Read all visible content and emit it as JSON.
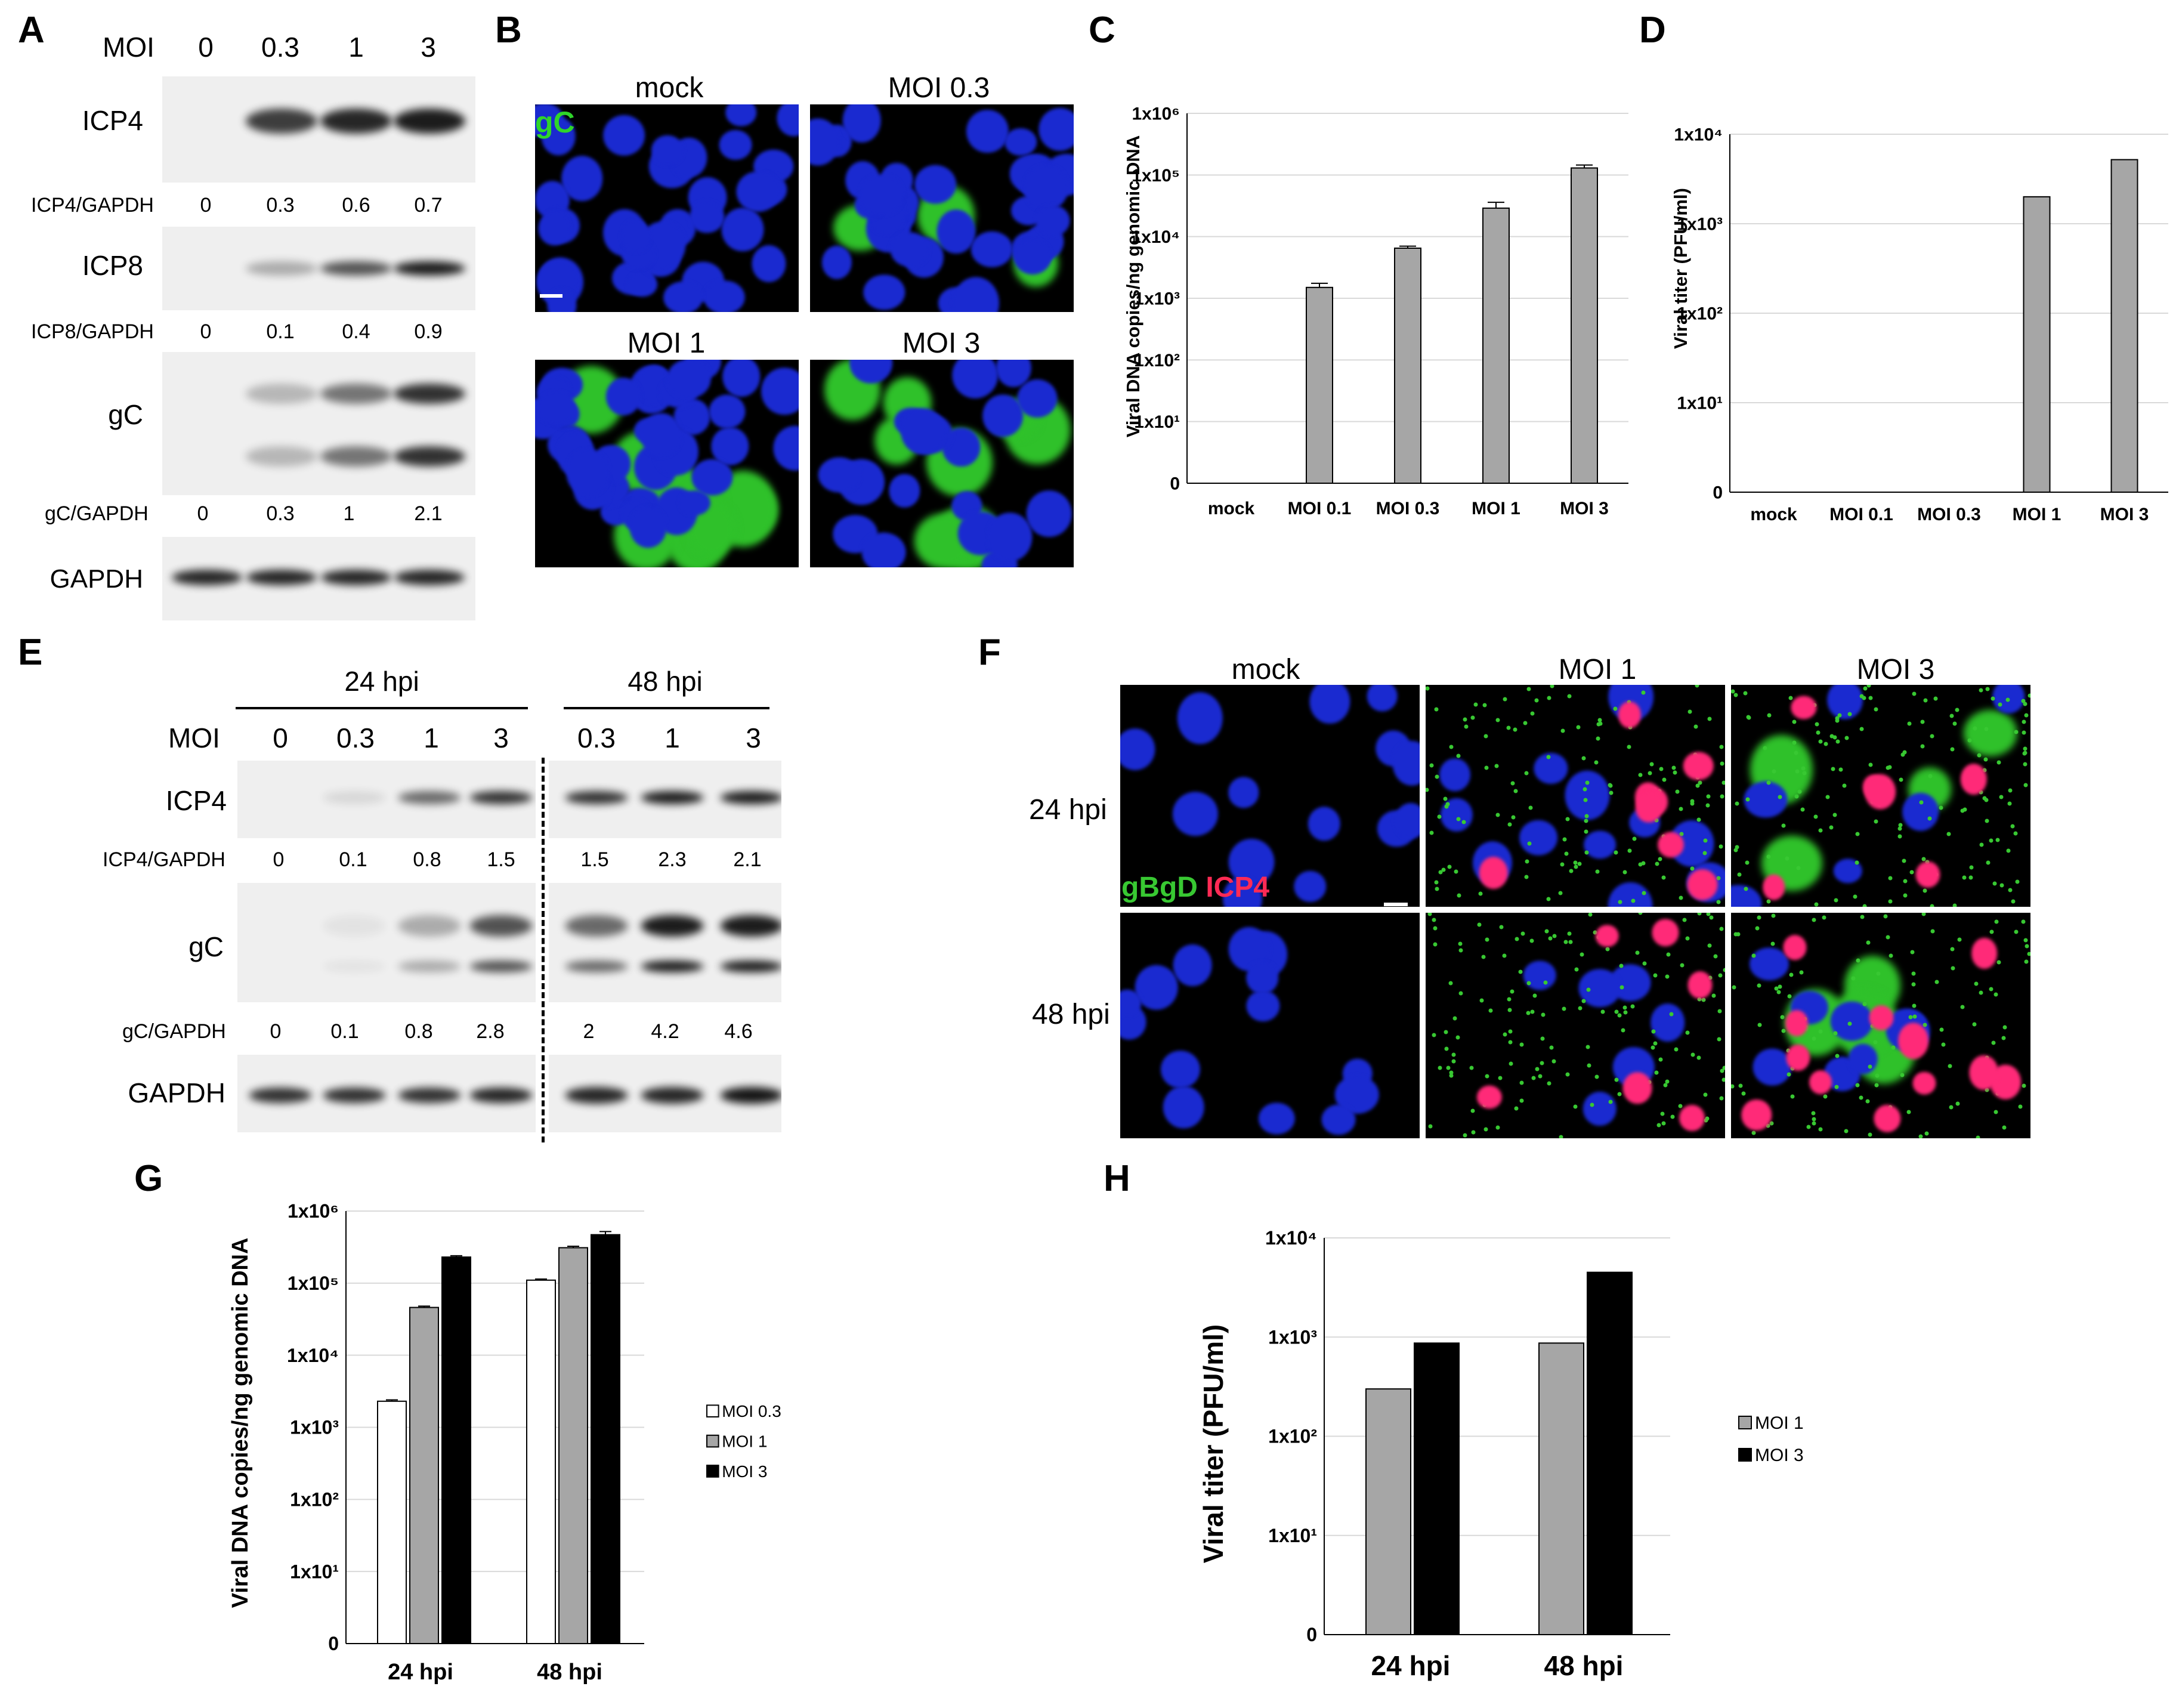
{
  "panel_labels": {
    "A": "A",
    "B": "B",
    "C": "C",
    "D": "D",
    "E": "E",
    "F": "F",
    "G": "G",
    "H": "H"
  },
  "panelA": {
    "moi_label": "MOI",
    "moi": [
      "0",
      "0.3",
      "1",
      "3"
    ],
    "blots": [
      {
        "label": "ICP4",
        "band_intensity": [
          0,
          0.8,
          0.9,
          0.95
        ],
        "ratio_label": "ICP4/GAPDH",
        "ratios": [
          "0",
          "0.3",
          "0.6",
          "0.7"
        ]
      },
      {
        "label": "ICP8",
        "band_intensity": [
          0,
          0.3,
          0.7,
          0.95
        ],
        "ratio_label": "ICP8/GAPDH",
        "ratios": [
          "0",
          "0.1",
          "0.4",
          "0.9"
        ]
      },
      {
        "label": "gC",
        "band_intensity": [
          0,
          0.25,
          0.55,
          0.85
        ],
        "ratio_label": "gC/GAPDH",
        "ratios": [
          "0",
          "0.3",
          "1",
          "2.1"
        ]
      },
      {
        "label": "GAPDH",
        "band_intensity": [
          0.9,
          0.9,
          0.9,
          0.9
        ]
      }
    ]
  },
  "panelB": {
    "stain_label": "gC",
    "colors": {
      "nucleus": "#1a2ad0",
      "stain": "#2fc12a"
    },
    "images": [
      {
        "title": "mock",
        "green_cells": 0
      },
      {
        "title": "MOI 0.3",
        "green_cells": 3
      },
      {
        "title": "MOI 1",
        "green_cells": 9
      },
      {
        "title": "MOI 3",
        "green_cells": 8
      }
    ]
  },
  "panelE": {
    "timepoints": [
      "24 hpi",
      "48 hpi"
    ],
    "moi_label": "MOI",
    "moi": [
      "0",
      "0.3",
      "1",
      "3",
      "0.3",
      "1",
      "3"
    ],
    "blots": [
      {
        "label": "ICP4",
        "band_intensity": [
          0,
          0.1,
          0.6,
          0.85,
          0.85,
          0.95,
          0.95
        ],
        "ratio_label": "ICP4/GAPDH",
        "ratios": [
          "0",
          "0.1",
          "0.8",
          "1.5",
          "1.5",
          "2.3",
          "2.1"
        ]
      },
      {
        "label": "gC",
        "band_intensity": [
          0,
          0.05,
          0.3,
          0.7,
          0.6,
          0.95,
          0.95
        ],
        "ratio_label": "gC/GAPDH",
        "ratios": [
          "0",
          "0.1",
          "0.8",
          "2.8",
          "2",
          "4.2",
          "4.6"
        ]
      },
      {
        "label": "GAPDH",
        "band_intensity": [
          0.85,
          0.85,
          0.85,
          0.9,
          0.9,
          0.9,
          0.98
        ]
      }
    ]
  },
  "panelF": {
    "columns": [
      "mock",
      "MOI 1",
      "MOI 3"
    ],
    "rows": [
      "24 hpi",
      "48 hpi"
    ],
    "stain_green": "gBgD",
    "stain_red": "ICP4",
    "colors": {
      "nucleus": "#1a2ad0",
      "green": "#38c832",
      "red": "#ff2a78"
    }
  },
  "chart_data": [
    {
      "panel": "C",
      "type": "bar",
      "ylabel": "Viral DNA copies/ng genomic DNA",
      "y_scale": "log",
      "y_ticks": [
        "0",
        "1x10¹",
        "1x10²",
        "1x10³",
        "1x10⁴",
        "1x10⁵",
        "1x10⁶"
      ],
      "categories": [
        "mock",
        "MOI 0.1",
        "MOI 0.3",
        "MOI 1",
        "MOI 3"
      ],
      "values": [
        0,
        1500,
        6500,
        29000,
        130000
      ],
      "error_upper": [
        0,
        1750,
        7000,
        36000,
        145000
      ],
      "bar_color": "#a6a6a6"
    },
    {
      "panel": "D",
      "type": "bar",
      "ylabel": "Viral titer (PFU/ml)",
      "y_scale": "log",
      "y_ticks": [
        "0",
        "1x10¹",
        "1x10²",
        "1x10³",
        "1x10⁴"
      ],
      "categories": [
        "mock",
        "MOI 0.1",
        "MOI 0.3",
        "MOI 1",
        "MOI 3"
      ],
      "values": [
        0,
        0,
        0,
        2000,
        5200
      ],
      "bar_color": "#a6a6a6"
    },
    {
      "panel": "G",
      "type": "bar",
      "ylabel": "Viral DNA copies/ng genomic DNA",
      "y_scale": "log",
      "y_ticks": [
        "0",
        "1x10¹",
        "1x10²",
        "1x10³",
        "1x10⁴",
        "1x10⁵",
        "1x10⁶"
      ],
      "categories": [
        "24 hpi",
        "48 hpi"
      ],
      "series": [
        {
          "name": "MOI 0.3",
          "color": "#ffffff",
          "values": [
            2300,
            110000
          ],
          "error_upper": [
            2400,
            114000
          ]
        },
        {
          "name": "MOI 1",
          "color": "#a6a6a6",
          "values": [
            46000,
            310000
          ],
          "error_upper": [
            48000,
            325000
          ]
        },
        {
          "name": "MOI 3",
          "color": "#000000",
          "values": [
            230000,
            470000
          ],
          "error_upper": [
            240000,
            520000
          ]
        }
      ],
      "legend_placement": "right"
    },
    {
      "panel": "H",
      "type": "bar",
      "ylabel": "Viral titer (PFU/ml)",
      "y_scale": "log",
      "y_ticks": [
        "0",
        "1x10¹",
        "1x10²",
        "1x10³",
        "1x10⁴"
      ],
      "categories": [
        "24 hpi",
        "48 hpi"
      ],
      "series": [
        {
          "name": "MOI 1",
          "color": "#a6a6a6",
          "values": [
            300,
            870
          ]
        },
        {
          "name": "MOI 3",
          "color": "#000000",
          "values": [
            870,
            4500
          ]
        }
      ],
      "legend_placement": "right"
    }
  ]
}
